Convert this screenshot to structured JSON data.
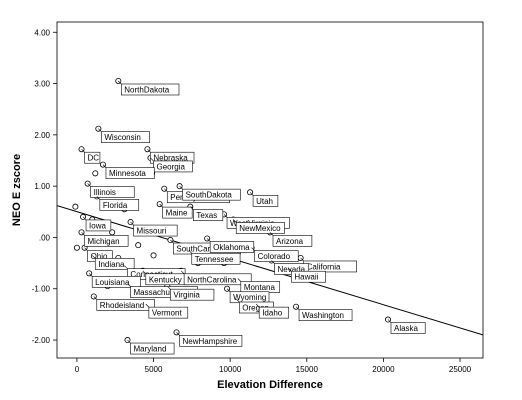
{
  "chart_data": {
    "type": "scatter",
    "xlabel": "Elevation Difference",
    "ylabel": "NEO E zscore",
    "xlim": [
      -1300,
      26500
    ],
    "ylim": [
      -2.35,
      4.2
    ],
    "x_ticks": [
      "0",
      "5000",
      "10000",
      "15000",
      "20000",
      "25000"
    ],
    "x_tick_values": [
      0,
      5000,
      10000,
      15000,
      20000,
      25000
    ],
    "y_ticks": [
      "4.00",
      "3.00",
      "2.00",
      "1.00",
      ".00",
      "-1.00",
      "-2.00"
    ],
    "y_tick_values": [
      4,
      3,
      2,
      1,
      0,
      -1,
      -2
    ],
    "fit_line": {
      "x": [
        -1300,
        26500
      ],
      "y": [
        0.62,
        -1.9
      ]
    },
    "points": [
      {
        "x": 2700,
        "y": 3.05,
        "label": "NorthDakota"
      },
      {
        "x": 1400,
        "y": 2.12,
        "label": "Wisconsin"
      },
      {
        "x": 300,
        "y": 1.72,
        "label": "DC"
      },
      {
        "x": 4600,
        "y": 1.72,
        "label": "Nebraska"
      },
      {
        "x": 4800,
        "y": 1.55,
        "label": "Georgia"
      },
      {
        "x": 1700,
        "y": 1.42,
        "label": "Minnesota"
      },
      {
        "x": 1200,
        "y": 1.25,
        "label": ""
      },
      {
        "x": 4900,
        "y": 1.25,
        "label": ""
      },
      {
        "x": 700,
        "y": 1.05,
        "label": "Illinois"
      },
      {
        "x": 5700,
        "y": 0.95,
        "label": "Pennsylvania"
      },
      {
        "x": 6700,
        "y": 1.0,
        "label": "SouthDakota"
      },
      {
        "x": 1300,
        "y": 0.8,
        "label": "Florida"
      },
      {
        "x": 11300,
        "y": 0.88,
        "label": "Utah"
      },
      {
        "x": 5400,
        "y": 0.65,
        "label": "Maine"
      },
      {
        "x": 7400,
        "y": 0.6,
        "label": "Texas"
      },
      {
        "x": 3100,
        "y": 0.55,
        "label": ""
      },
      {
        "x": -100,
        "y": 0.6,
        "label": ""
      },
      {
        "x": 400,
        "y": 0.4,
        "label": "Iowa"
      },
      {
        "x": 1000,
        "y": 0.35,
        "label": ""
      },
      {
        "x": 3500,
        "y": 0.3,
        "label": "Missouri"
      },
      {
        "x": 8800,
        "y": 0.4,
        "label": ""
      },
      {
        "x": 9600,
        "y": 0.45,
        "label": "WestVirginia"
      },
      {
        "x": 10200,
        "y": 0.35,
        "label": "NewMexico"
      },
      {
        "x": 12600,
        "y": 0.1,
        "label": "Arizona"
      },
      {
        "x": 300,
        "y": 0.1,
        "label": "Michigan"
      },
      {
        "x": 2300,
        "y": 0.1,
        "label": ""
      },
      {
        "x": 6100,
        "y": -0.05,
        "label": "SouthCarolina"
      },
      {
        "x": 8500,
        "y": -0.02,
        "label": "Oklahoma"
      },
      {
        "x": 500,
        "y": -0.2,
        "label": "Ohio"
      },
      {
        "x": 11400,
        "y": -0.2,
        "label": "Colorado"
      },
      {
        "x": 7300,
        "y": -0.25,
        "label": "Tennessee"
      },
      {
        "x": 1000,
        "y": -0.35,
        "label": "Indiana"
      },
      {
        "x": 2700,
        "y": -0.4,
        "label": ""
      },
      {
        "x": 14600,
        "y": -0.4,
        "label": "California"
      },
      {
        "x": 9600,
        "y": -0.5,
        "label": ""
      },
      {
        "x": 12700,
        "y": -0.45,
        "label": "Nevada"
      },
      {
        "x": 13800,
        "y": -0.6,
        "label": "Hawaii"
      },
      {
        "x": 3100,
        "y": -0.55,
        "label": "Connecticut"
      },
      {
        "x": 4300,
        "y": -0.65,
        "label": "Kentucky"
      },
      {
        "x": 6800,
        "y": -0.65,
        "label": "NorthCarolina"
      },
      {
        "x": 800,
        "y": -0.7,
        "label": "Louisiana"
      },
      {
        "x": 10500,
        "y": -0.8,
        "label": "Montana"
      },
      {
        "x": 3300,
        "y": -0.9,
        "label": "Massachusetts"
      },
      {
        "x": 5900,
        "y": -0.95,
        "label": "Virginia"
      },
      {
        "x": 9800,
        "y": -1.0,
        "label": "Wyoming"
      },
      {
        "x": 1100,
        "y": -1.15,
        "label": "Rhodeisland"
      },
      {
        "x": 10400,
        "y": -1.2,
        "label": "Oregon"
      },
      {
        "x": 4500,
        "y": -1.3,
        "label": "Vermont"
      },
      {
        "x": 11700,
        "y": -1.3,
        "label": "Idaho"
      },
      {
        "x": 14300,
        "y": -1.35,
        "label": "Washington"
      },
      {
        "x": 20300,
        "y": -1.6,
        "label": "Alaska"
      },
      {
        "x": 3300,
        "y": -2.0,
        "label": "Maryland"
      },
      {
        "x": 6500,
        "y": -1.85,
        "label": "NewHampshire"
      },
      {
        "x": 0,
        "y": -0.2,
        "label": ""
      },
      {
        "x": 2000,
        "y": -0.95,
        "label": ""
      },
      {
        "x": 4000,
        "y": -0.15,
        "label": ""
      },
      {
        "x": 7900,
        "y": -0.5,
        "label": ""
      },
      {
        "x": 8800,
        "y": -0.8,
        "label": ""
      },
      {
        "x": 5000,
        "y": -0.35,
        "label": ""
      },
      {
        "x": 1500,
        "y": -0.5,
        "label": ""
      }
    ]
  }
}
